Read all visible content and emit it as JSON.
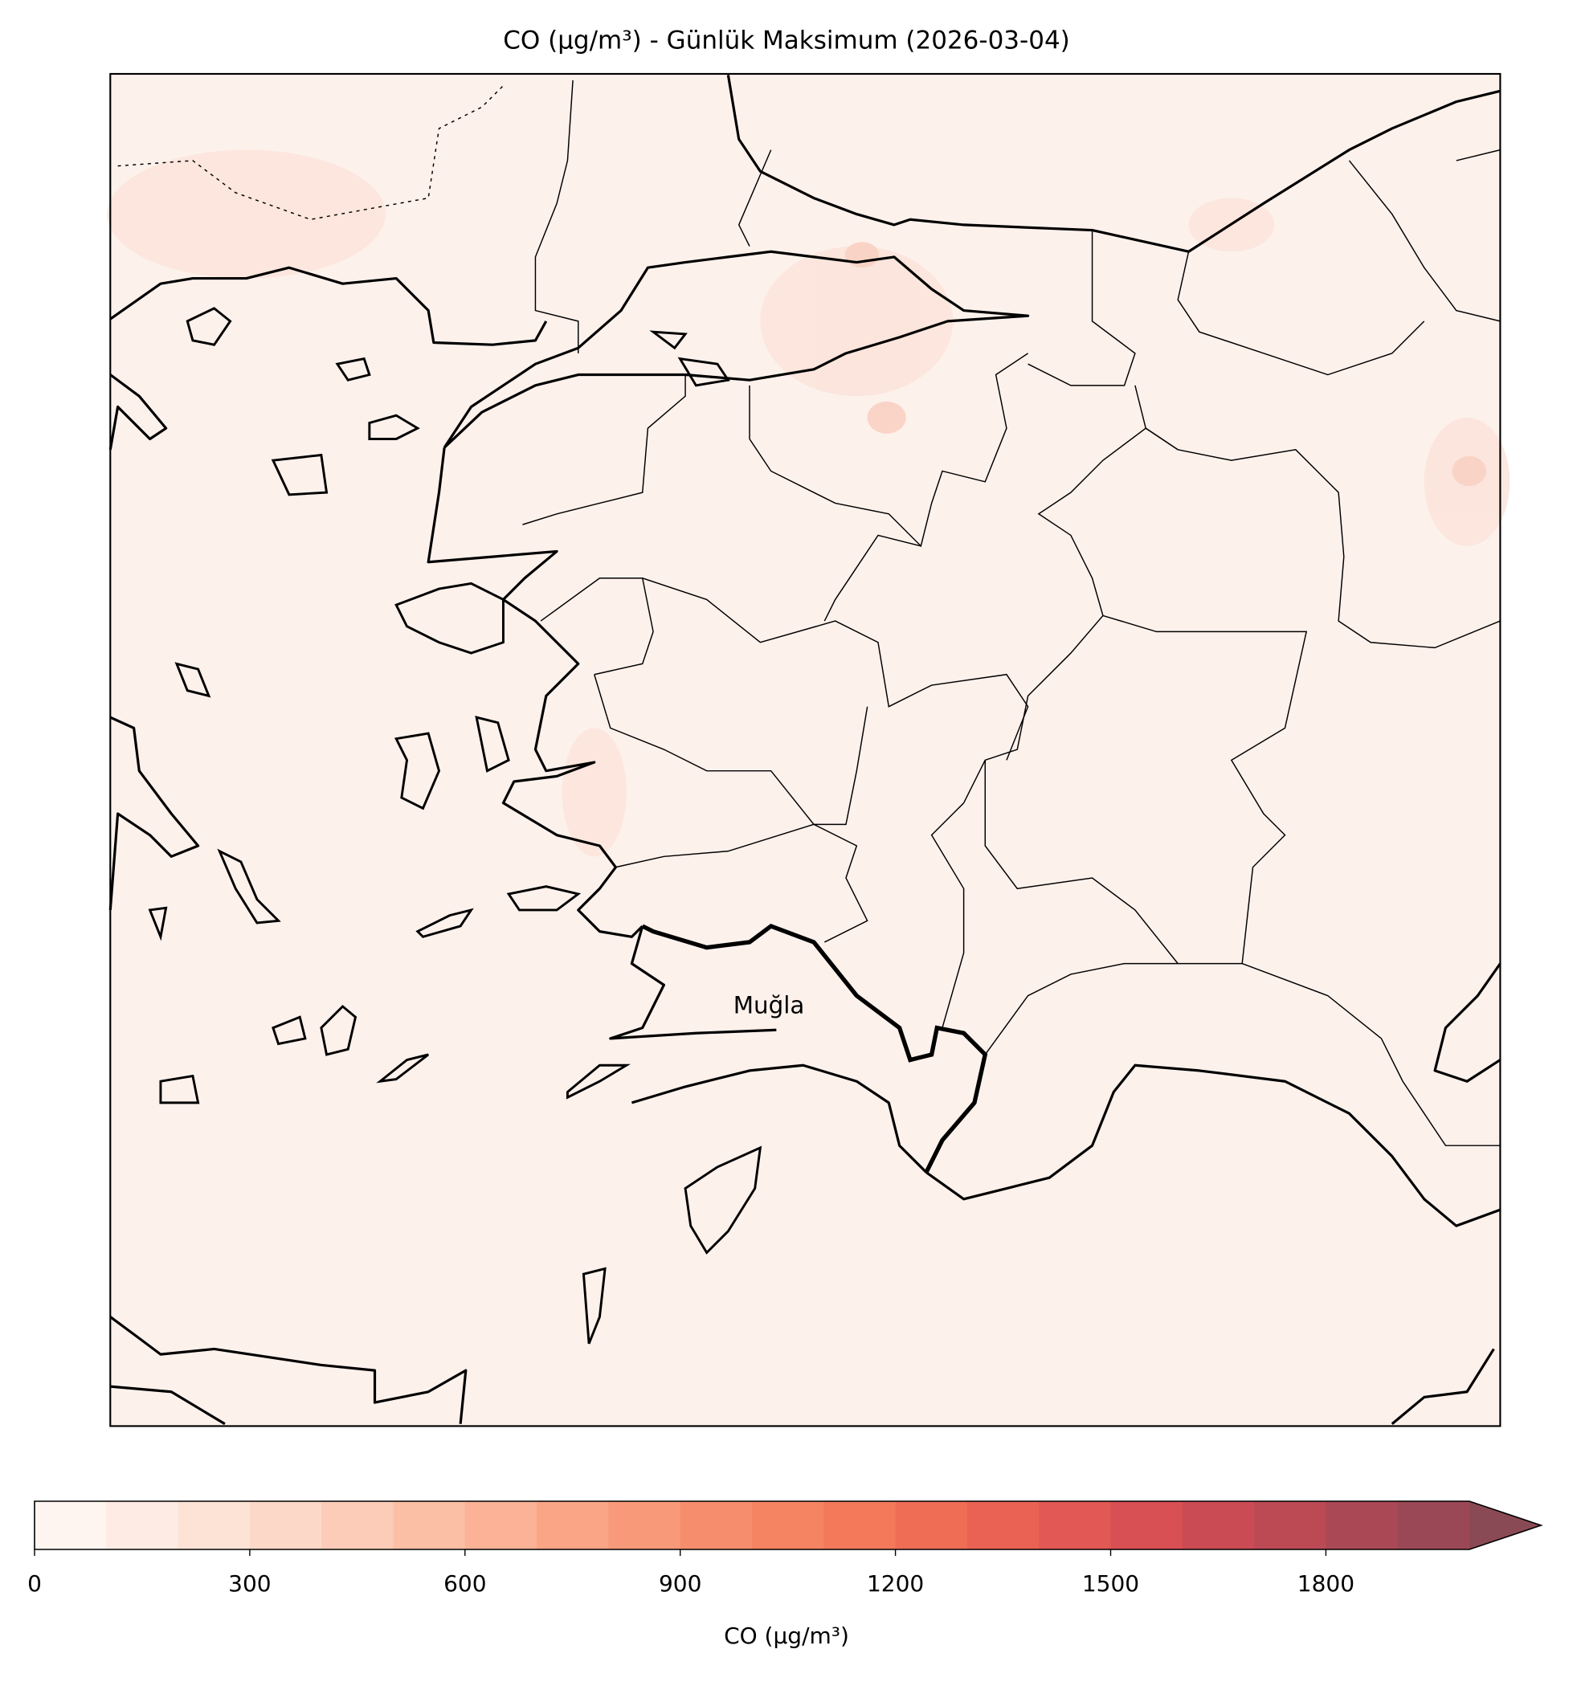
{
  "title": "CO (µg/m³) - Günlük Maksimum (2026-03-04)",
  "map": {
    "annotations": [
      "Muğla"
    ]
  },
  "colorbar": {
    "label": "CO (µg/m³)",
    "levels": [
      0,
      100,
      200,
      300,
      400,
      500,
      600,
      700,
      800,
      900,
      1000,
      1100,
      1200,
      1300,
      1400,
      1500,
      1600,
      1700,
      1800,
      1900,
      2000
    ],
    "colors": [
      "#fef4f0",
      "#feebe3",
      "#fde3d6",
      "#fcd8c8",
      "#fcccb8",
      "#fbbfa6",
      "#fbb296",
      "#f9a586",
      "#f89a79",
      "#f68e6d",
      "#f58462",
      "#f3795a",
      "#ef6d55",
      "#ea6254",
      "#e25854",
      "#d85054",
      "#cb4b54",
      "#bb4a55",
      "#ab4855",
      "#9b4856"
    ],
    "over_color": "#8a4a55",
    "extend": "max",
    "ticks": [
      0,
      300,
      600,
      900,
      1200,
      1500,
      1800
    ]
  }
}
